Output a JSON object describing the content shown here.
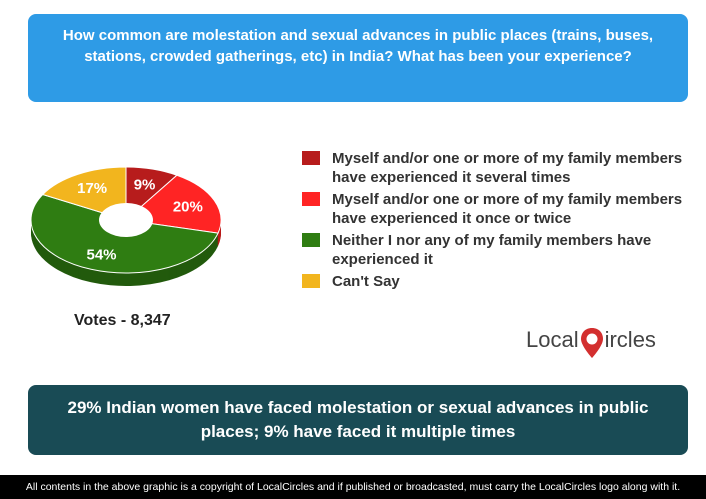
{
  "question": {
    "text": "How common are molestation and sexual advances in public places (trains, buses, stations, crowded gatherings, etc) in India? What has been your experience?"
  },
  "chart_data": {
    "type": "pie",
    "donut": true,
    "slices": [
      {
        "label": "Myself and/or one or more of my family members have experienced it several times",
        "value": 9,
        "display": "9%",
        "color": "#b71c1c"
      },
      {
        "label": "Myself and/or one or more of my family members have experienced it once or twice",
        "value": 20,
        "display": "20%",
        "color": "#ff2424"
      },
      {
        "label": "Neither I nor any of my family members have experienced it",
        "value": 54,
        "display": "54%",
        "color": "#2f7d12"
      },
      {
        "label": "Can't Say",
        "value": 17,
        "display": "17%",
        "color": "#f2b51e"
      }
    ],
    "legend_position": "right"
  },
  "votes": {
    "text": "Votes - 8,347"
  },
  "logo": {
    "part1": "Local",
    "part2": "ircles"
  },
  "conclusion": {
    "text": "29% Indian women have faced molestation or sexual advances in public places; 9% have faced it multiple times"
  },
  "footer": {
    "text": "All contents in the above graphic is a copyright of LocalCircles and if published or broadcasted, must carry the LocalCircles logo along with it."
  },
  "colors": {
    "question_bg": "#2e9be6",
    "conclusion_bg": "#194b55",
    "logo_accent": "#d32f2f"
  }
}
